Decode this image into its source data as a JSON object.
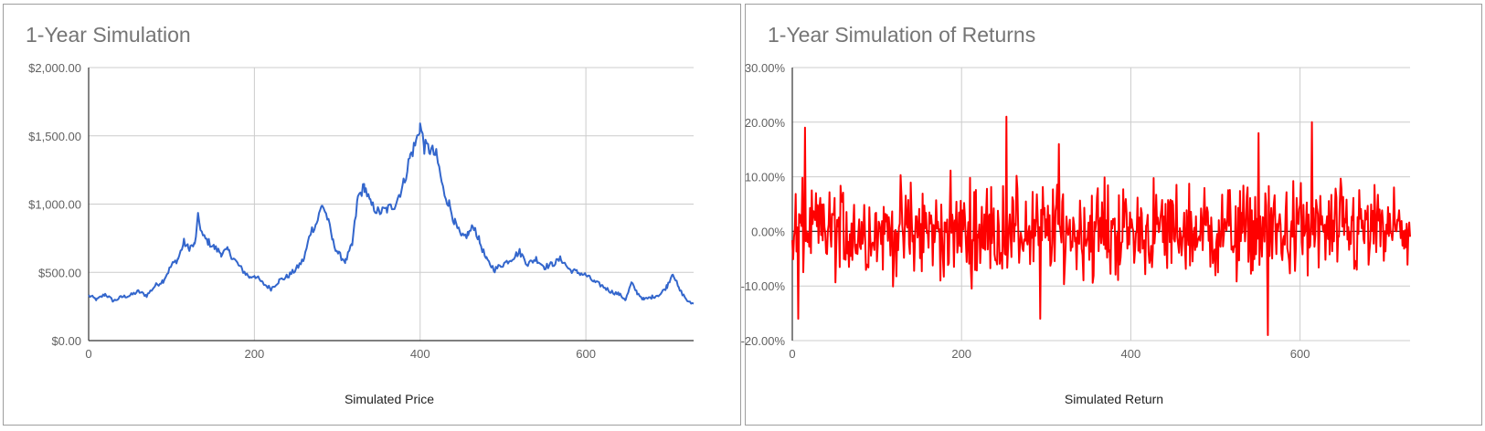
{
  "charts": [
    {
      "title": "1-Year Simulation",
      "xlabel": "Simulated Price",
      "y_ticks": [
        "$0.00",
        "$500.00",
        "$1,000.00",
        "$1,500.00",
        "$2,000.00"
      ],
      "x_ticks": [
        "0",
        "200",
        "400",
        "600"
      ],
      "line_color": "#3366cc"
    },
    {
      "title": "1-Year Simulation of Returns",
      "xlabel": "Simulated Return",
      "y_ticks": [
        "-20.00%",
        "-10.00%",
        "0.00%",
        "10.00%",
        "20.00%",
        "30.00%"
      ],
      "x_ticks": [
        "0",
        "200",
        "400",
        "600"
      ],
      "line_color": "#ff0000"
    }
  ],
  "chart_data": [
    {
      "type": "line",
      "title": "1-Year Simulation",
      "xlabel": "Simulated Price",
      "ylabel": "",
      "xlim": [
        0,
        730
      ],
      "ylim": [
        0,
        2000
      ],
      "grid": true,
      "legend": "none",
      "series": [
        {
          "color": "#3366cc",
          "points": [
            [
              0,
              330
            ],
            [
              10,
              300
            ],
            [
              20,
              340
            ],
            [
              30,
              290
            ],
            [
              40,
              320
            ],
            [
              50,
              330
            ],
            [
              60,
              360
            ],
            [
              70,
              330
            ],
            [
              80,
              400
            ],
            [
              90,
              440
            ],
            [
              100,
              550
            ],
            [
              108,
              600
            ],
            [
              115,
              720
            ],
            [
              120,
              680
            ],
            [
              128,
              700
            ],
            [
              132,
              900
            ],
            [
              138,
              760
            ],
            [
              145,
              720
            ],
            [
              152,
              680
            ],
            [
              160,
              640
            ],
            [
              168,
              660
            ],
            [
              175,
              600
            ],
            [
              185,
              520
            ],
            [
              195,
              460
            ],
            [
              200,
              480
            ],
            [
              210,
              420
            ],
            [
              220,
              380
            ],
            [
              230,
              440
            ],
            [
              240,
              470
            ],
            [
              250,
              520
            ],
            [
              260,
              600
            ],
            [
              268,
              800
            ],
            [
              275,
              860
            ],
            [
              282,
              1000
            ],
            [
              288,
              900
            ],
            [
              295,
              720
            ],
            [
              302,
              630
            ],
            [
              310,
              580
            ],
            [
              318,
              700
            ],
            [
              325,
              1050
            ],
            [
              333,
              1130
            ],
            [
              340,
              1000
            ],
            [
              350,
              940
            ],
            [
              360,
              960
            ],
            [
              370,
              1000
            ],
            [
              380,
              1150
            ],
            [
              388,
              1350
            ],
            [
              395,
              1450
            ],
            [
              400,
              1580
            ],
            [
              405,
              1420
            ],
            [
              412,
              1400
            ],
            [
              420,
              1350
            ],
            [
              428,
              1100
            ],
            [
              435,
              1000
            ],
            [
              442,
              860
            ],
            [
              450,
              750
            ],
            [
              458,
              780
            ],
            [
              465,
              840
            ],
            [
              472,
              720
            ],
            [
              480,
              590
            ],
            [
              490,
              520
            ],
            [
              500,
              560
            ],
            [
              510,
              600
            ],
            [
              520,
              650
            ],
            [
              530,
              560
            ],
            [
              540,
              600
            ],
            [
              550,
              540
            ],
            [
              560,
              560
            ],
            [
              570,
              600
            ],
            [
              580,
              520
            ],
            [
              590,
              500
            ],
            [
              600,
              480
            ],
            [
              610,
              430
            ],
            [
              620,
              400
            ],
            [
              630,
              360
            ],
            [
              640,
              340
            ],
            [
              648,
              300
            ],
            [
              655,
              420
            ],
            [
              662,
              350
            ],
            [
              670,
              300
            ],
            [
              680,
              320
            ],
            [
              690,
              340
            ],
            [
              698,
              400
            ],
            [
              705,
              500
            ],
            [
              712,
              380
            ],
            [
              718,
              330
            ],
            [
              724,
              280
            ],
            [
              730,
              270
            ]
          ]
        }
      ]
    },
    {
      "type": "line",
      "title": "1-Year Simulation of Returns",
      "xlabel": "Simulated Return",
      "ylabel": "",
      "xlim": [
        0,
        730
      ],
      "ylim": [
        -0.2,
        0.3
      ],
      "grid": true,
      "legend": "none",
      "series": [
        {
          "color": "#ff0000",
          "note_peaks": [
            [
              15,
              0.19
            ],
            [
              253,
              0.21
            ],
            [
              315,
              0.16
            ],
            [
              562,
              -0.19
            ],
            [
              614,
              0.2
            ],
            [
              551,
              0.18
            ],
            [
              7,
              -0.16
            ],
            [
              293,
              -0.16
            ]
          ]
        }
      ]
    }
  ]
}
